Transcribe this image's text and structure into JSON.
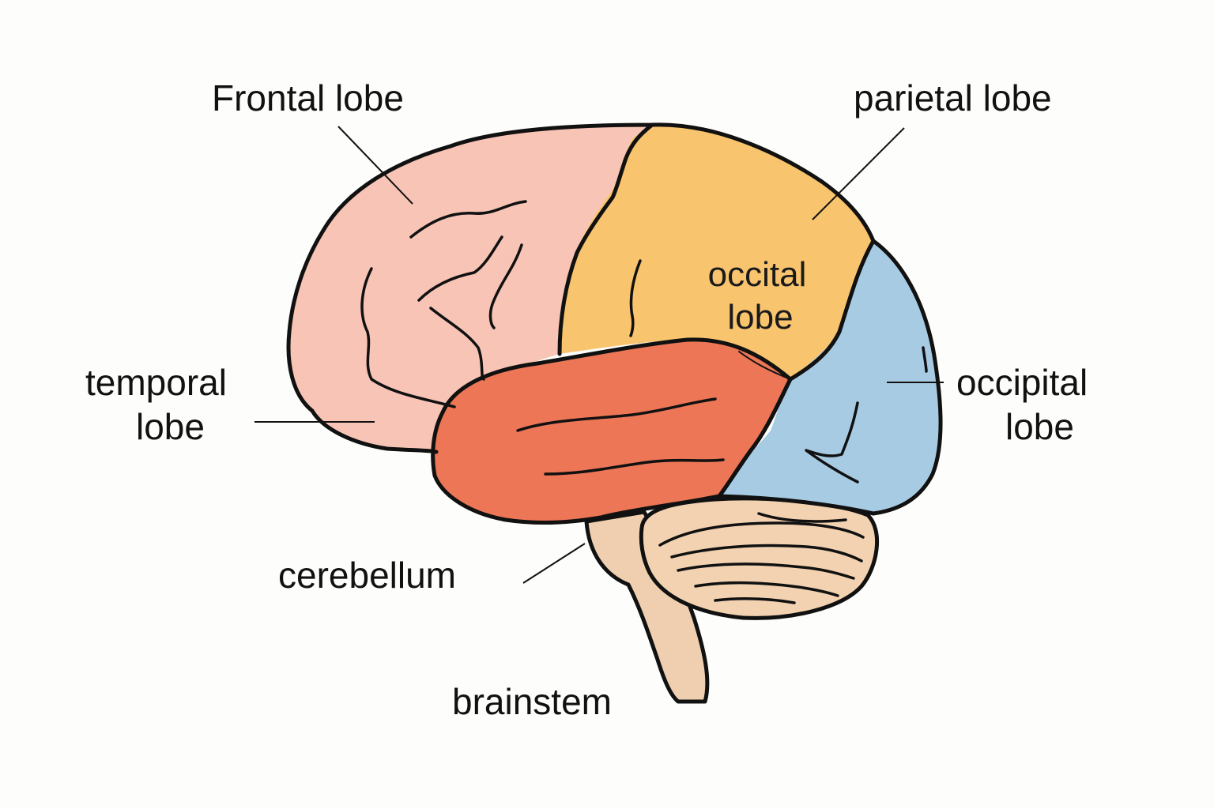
{
  "labels": {
    "frontal": "Frontal lobe",
    "parietal": "parietal lobe",
    "occital_line1": "occital",
    "occital_line2": "lobe",
    "temporal_line1": "temporal",
    "temporal_line2": "lobe",
    "occipital_line1": "occipital",
    "occipital_line2": "lobe",
    "cerebellum": "cerebellum",
    "brainstem": "brainstem"
  },
  "colors": {
    "frontal": "#f8c4b6",
    "parietal": "#f9c46e",
    "temporal": "#ec7656",
    "occipital": "#a7cbe3",
    "cerebellum": "#f3d2b1",
    "brainstem": "#efcfaf",
    "outline": "#111111"
  }
}
